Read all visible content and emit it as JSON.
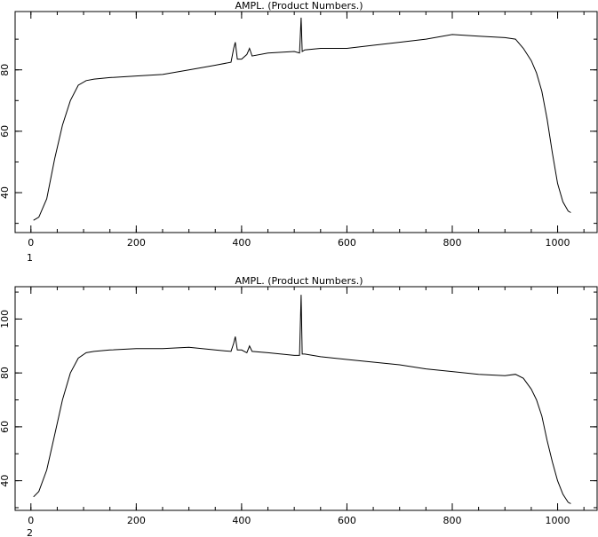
{
  "chart_data": [
    {
      "type": "line",
      "title": "AMPL.  (Product Numbers.)",
      "panel_label": "1",
      "xlabel": "",
      "ylabel": "",
      "xlim": [
        -30,
        1075
      ],
      "ylim": [
        27,
        99
      ],
      "xticks_major": [
        0,
        200,
        400,
        600,
        800,
        1000
      ],
      "xticks_minor_step": 50,
      "yticks_major": [
        40,
        60,
        80
      ],
      "yticks_minor_step": 10,
      "grid": false,
      "series": [
        {
          "x": [
            5,
            15,
            30,
            45,
            60,
            75,
            90,
            105,
            120,
            150,
            200,
            250,
            300,
            350,
            380,
            385,
            388,
            392,
            400,
            410,
            415,
            420,
            450,
            500,
            510,
            513,
            515,
            520,
            550,
            600,
            650,
            700,
            750,
            800,
            850,
            900,
            920,
            935,
            950,
            960,
            970,
            980,
            990,
            1000,
            1010,
            1020,
            1025
          ],
          "y": [
            31,
            32,
            38,
            51,
            62,
            70,
            75,
            76.5,
            77,
            77.5,
            78,
            78.5,
            80,
            81.5,
            82.5,
            87,
            89,
            83.5,
            83.5,
            85,
            87,
            84.5,
            85.5,
            86,
            85.5,
            97,
            86,
            86.5,
            87,
            87,
            88,
            89,
            90,
            91.5,
            91,
            90.5,
            90,
            87,
            83,
            79,
            73,
            64,
            53,
            43,
            37,
            34,
            33.5
          ]
        }
      ]
    },
    {
      "type": "line",
      "title": "AMPL.  (Product Numbers.)",
      "panel_label": "2",
      "xlabel": "",
      "ylabel": "",
      "xlim": [
        -30,
        1075
      ],
      "ylim": [
        29,
        112
      ],
      "xticks_major": [
        0,
        200,
        400,
        600,
        800,
        1000
      ],
      "xticks_minor_step": 50,
      "yticks_major": [
        40,
        60,
        80,
        100
      ],
      "yticks_minor_step": 10,
      "grid": false,
      "series": [
        {
          "x": [
            5,
            15,
            30,
            45,
            60,
            75,
            90,
            105,
            120,
            150,
            200,
            250,
            300,
            350,
            380,
            385,
            388,
            392,
            400,
            410,
            415,
            420,
            450,
            500,
            510,
            513,
            515,
            520,
            550,
            600,
            650,
            700,
            750,
            800,
            850,
            900,
            920,
            935,
            950,
            960,
            970,
            980,
            990,
            1000,
            1010,
            1020,
            1025
          ],
          "y": [
            34,
            36,
            44,
            57,
            70,
            80,
            85.5,
            87.5,
            88,
            88.5,
            89,
            89,
            89.5,
            88.5,
            88,
            91,
            93.5,
            88.5,
            88.5,
            87.5,
            90,
            88,
            87.5,
            86.5,
            86.5,
            109,
            87,
            87,
            86,
            85,
            84,
            83,
            81.5,
            80.5,
            79.5,
            79,
            79.5,
            78,
            74,
            70,
            64,
            55,
            47,
            40,
            35,
            32,
            31.5
          ]
        }
      ]
    }
  ]
}
